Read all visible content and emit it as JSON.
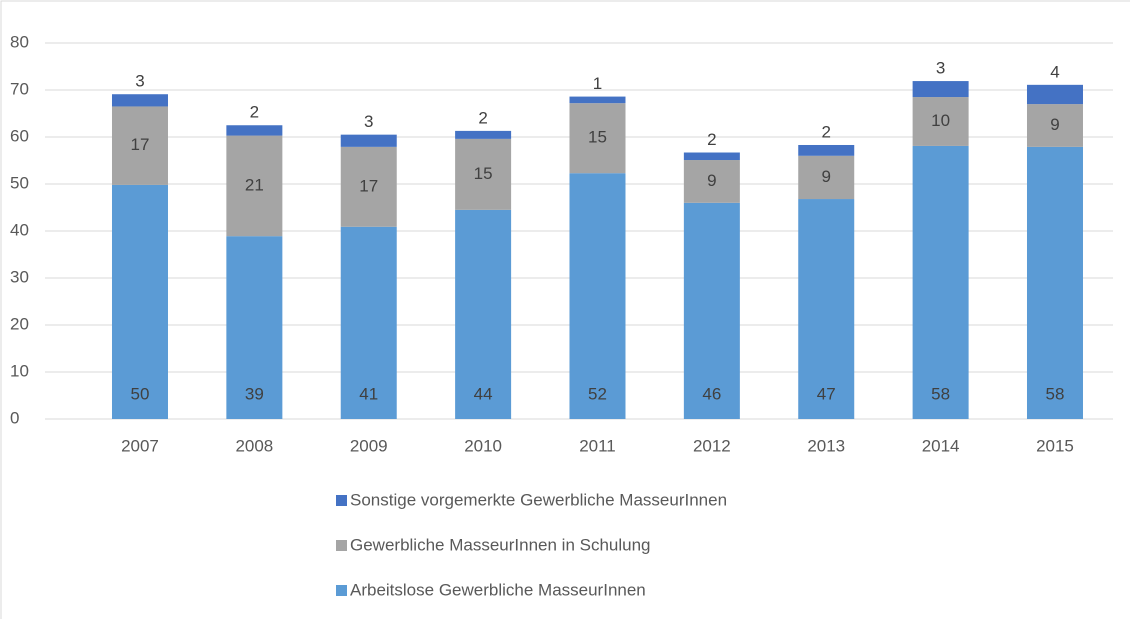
{
  "chart_data": {
    "type": "stacked_bar",
    "categories": [
      "2007",
      "2008",
      "2009",
      "2010",
      "2011",
      "2012",
      "2013",
      "2014",
      "2015"
    ],
    "series": [
      {
        "name": "Arbeitslose Gewerbliche MasseurInnen",
        "color": "#5b9bd5",
        "values": [
          49.8,
          38.9,
          40.9,
          44.5,
          52.3,
          46.0,
          46.8,
          58.1,
          57.9
        ],
        "value_labels": [
          "50",
          "39",
          "41",
          "44",
          "52",
          "46",
          "47",
          "58",
          "58"
        ]
      },
      {
        "name": "Gewerbliche MasseurInnen in Schulung",
        "color": "#a5a5a5",
        "values": [
          16.7,
          21.4,
          17.0,
          15.1,
          14.9,
          9.1,
          9.2,
          10.4,
          9.1
        ],
        "value_labels": [
          "17",
          "21",
          "17",
          "15",
          "15",
          "9",
          "9",
          "10",
          "9"
        ]
      },
      {
        "name": "Sonstige vorgemerkte Gewerbliche MasseurInnen",
        "color": "#4472c4",
        "values": [
          2.6,
          2.2,
          2.6,
          1.7,
          1.4,
          1.6,
          2.3,
          3.4,
          4.1
        ],
        "value_labels": [
          "3",
          "2",
          "3",
          "2",
          "1",
          "2",
          "2",
          "3",
          "4"
        ]
      }
    ],
    "ylim": [
      0,
      80
    ],
    "yticks": [
      0,
      10,
      20,
      30,
      40,
      50,
      60,
      70,
      80
    ],
    "grid": true
  }
}
